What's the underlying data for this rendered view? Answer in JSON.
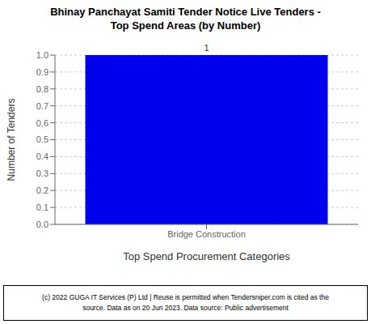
{
  "chart_data": {
    "type": "bar",
    "title": "Bhinay Panchayat Samiti Tender Notice Live Tenders -\nTop Spend Areas (by Number)",
    "categories": [
      "Bridge Construction"
    ],
    "values": [
      1
    ],
    "color": "#0000EE",
    "xlabel": "Top Spend Procurement Categories",
    "ylabel": "Number of Tenders",
    "ylim": [
      0.0,
      1.0
    ],
    "yticks": [
      {
        "value": 0.0,
        "label": "0.0"
      },
      0.1,
      0.2,
      0.3,
      0.4,
      0.5,
      0.6,
      0.7,
      0.8,
      0.9,
      {
        "value": 1.0,
        "label": "1.0"
      }
    ],
    "grid": true,
    "data_labels": true,
    "annotations": [
      "(c) 2022 GUGA IT Services (P) Ltd | Reuse is permitted when Tendersniper.com is cited as the\nsource. Data as on 20 Jun 2023. Data source: Public advertisement"
    ]
  }
}
